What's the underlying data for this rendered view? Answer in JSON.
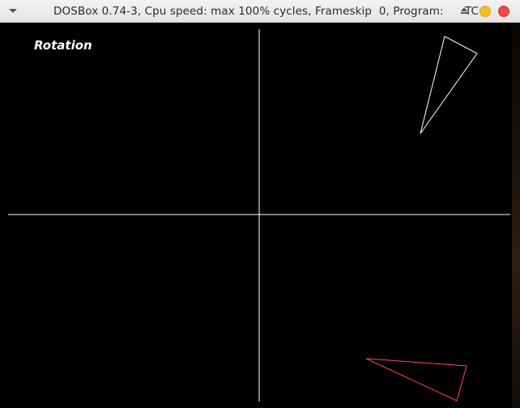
{
  "window": {
    "title": "DOSBox 0.74-3, Cpu speed: max 100% cycles, Frameskip  0, Program:      TC",
    "buttons": [
      "menu-icon",
      "shade-icon",
      "minimize-icon",
      "close-icon"
    ]
  },
  "screen": {
    "label": "Rotation",
    "background": "#000000",
    "axis_color": "#ffffff",
    "triangle_colors": {
      "original": "#ffffff",
      "rotated": "#ff4a4a"
    }
  }
}
